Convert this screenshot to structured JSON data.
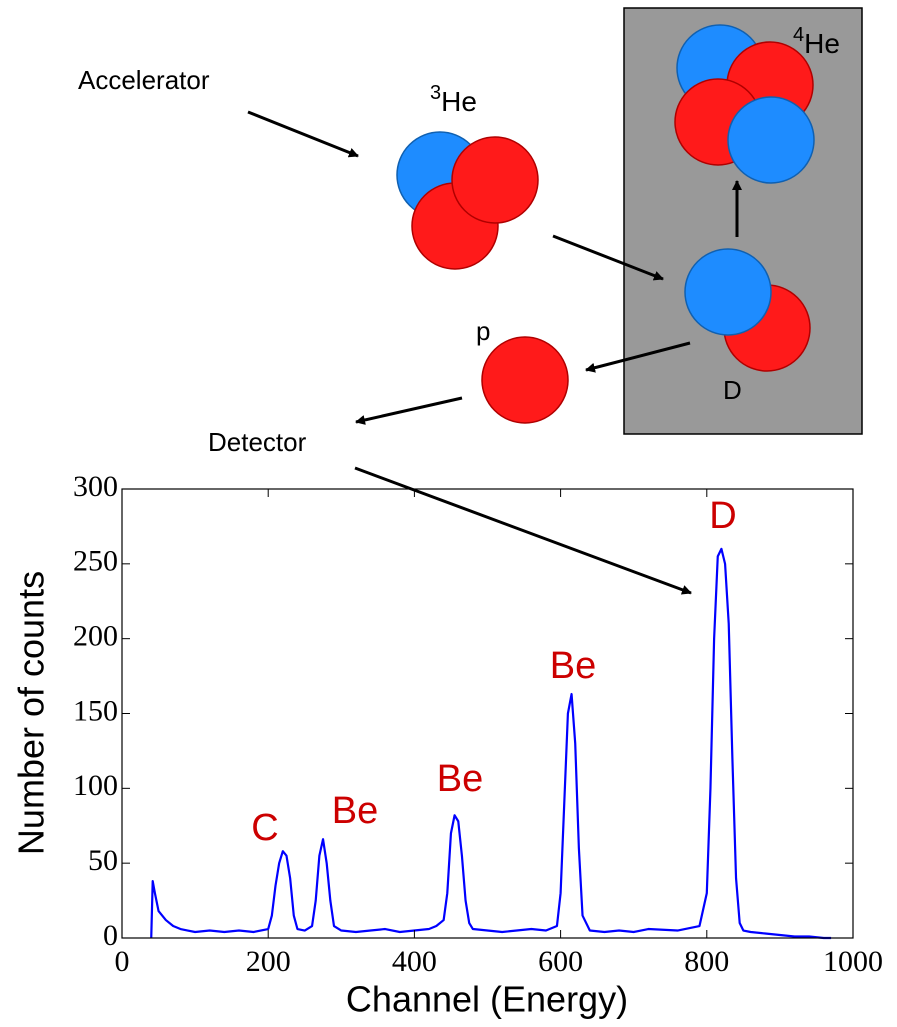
{
  "diagram": {
    "accelerator": "Accelerator",
    "he3": {
      "mass": "3",
      "symbol": "He"
    },
    "he4": {
      "mass": "4",
      "symbol": "He"
    },
    "proton": "p",
    "deuteron": "D",
    "detector": "Detector"
  },
  "chart_data": {
    "type": "line",
    "x_label": "Channel (Energy)",
    "y_label": "Number of counts",
    "x": [
      40,
      42,
      45,
      50,
      60,
      70,
      80,
      90,
      100,
      120,
      140,
      160,
      180,
      200,
      205,
      210,
      215,
      220,
      225,
      230,
      235,
      240,
      250,
      260,
      265,
      270,
      275,
      280,
      285,
      290,
      300,
      320,
      340,
      360,
      380,
      400,
      420,
      430,
      440,
      445,
      450,
      455,
      460,
      465,
      470,
      475,
      480,
      500,
      520,
      540,
      560,
      580,
      595,
      600,
      605,
      610,
      615,
      620,
      625,
      630,
      640,
      660,
      680,
      700,
      720,
      760,
      790,
      800,
      805,
      810,
      815,
      820,
      825,
      830,
      835,
      840,
      845,
      850,
      860,
      880,
      900,
      920,
      940,
      960,
      970
    ],
    "series": [
      {
        "color": "#0000ff",
        "values": [
          0,
          38,
          30,
          18,
          12,
          8,
          6,
          5,
          4,
          5,
          4,
          5,
          4,
          6,
          15,
          35,
          50,
          58,
          55,
          40,
          15,
          6,
          5,
          8,
          25,
          55,
          66,
          50,
          25,
          8,
          5,
          4,
          5,
          6,
          4,
          5,
          6,
          8,
          12,
          30,
          70,
          82,
          78,
          55,
          25,
          10,
          6,
          5,
          4,
          5,
          6,
          5,
          8,
          30,
          90,
          150,
          163,
          130,
          60,
          15,
          5,
          4,
          5,
          4,
          6,
          5,
          8,
          30,
          100,
          200,
          255,
          260,
          250,
          210,
          120,
          40,
          10,
          5,
          4,
          3,
          2,
          1,
          1,
          0,
          0
        ]
      }
    ],
    "xlim": [
      0,
      1000
    ],
    "ylim": [
      0,
      300
    ],
    "xticks": [
      0,
      200,
      400,
      600,
      800,
      1000
    ],
    "yticks": [
      0,
      50,
      100,
      150,
      200,
      250,
      300
    ],
    "annotations": [
      {
        "text": "C",
        "color": "#cc0000"
      },
      {
        "text": "Be",
        "color": "#cc0000"
      },
      {
        "text": "Be",
        "color": "#cc0000"
      },
      {
        "text": "Be",
        "color": "#cc0000"
      },
      {
        "text": "D",
        "color": "#cc0000"
      }
    ]
  }
}
